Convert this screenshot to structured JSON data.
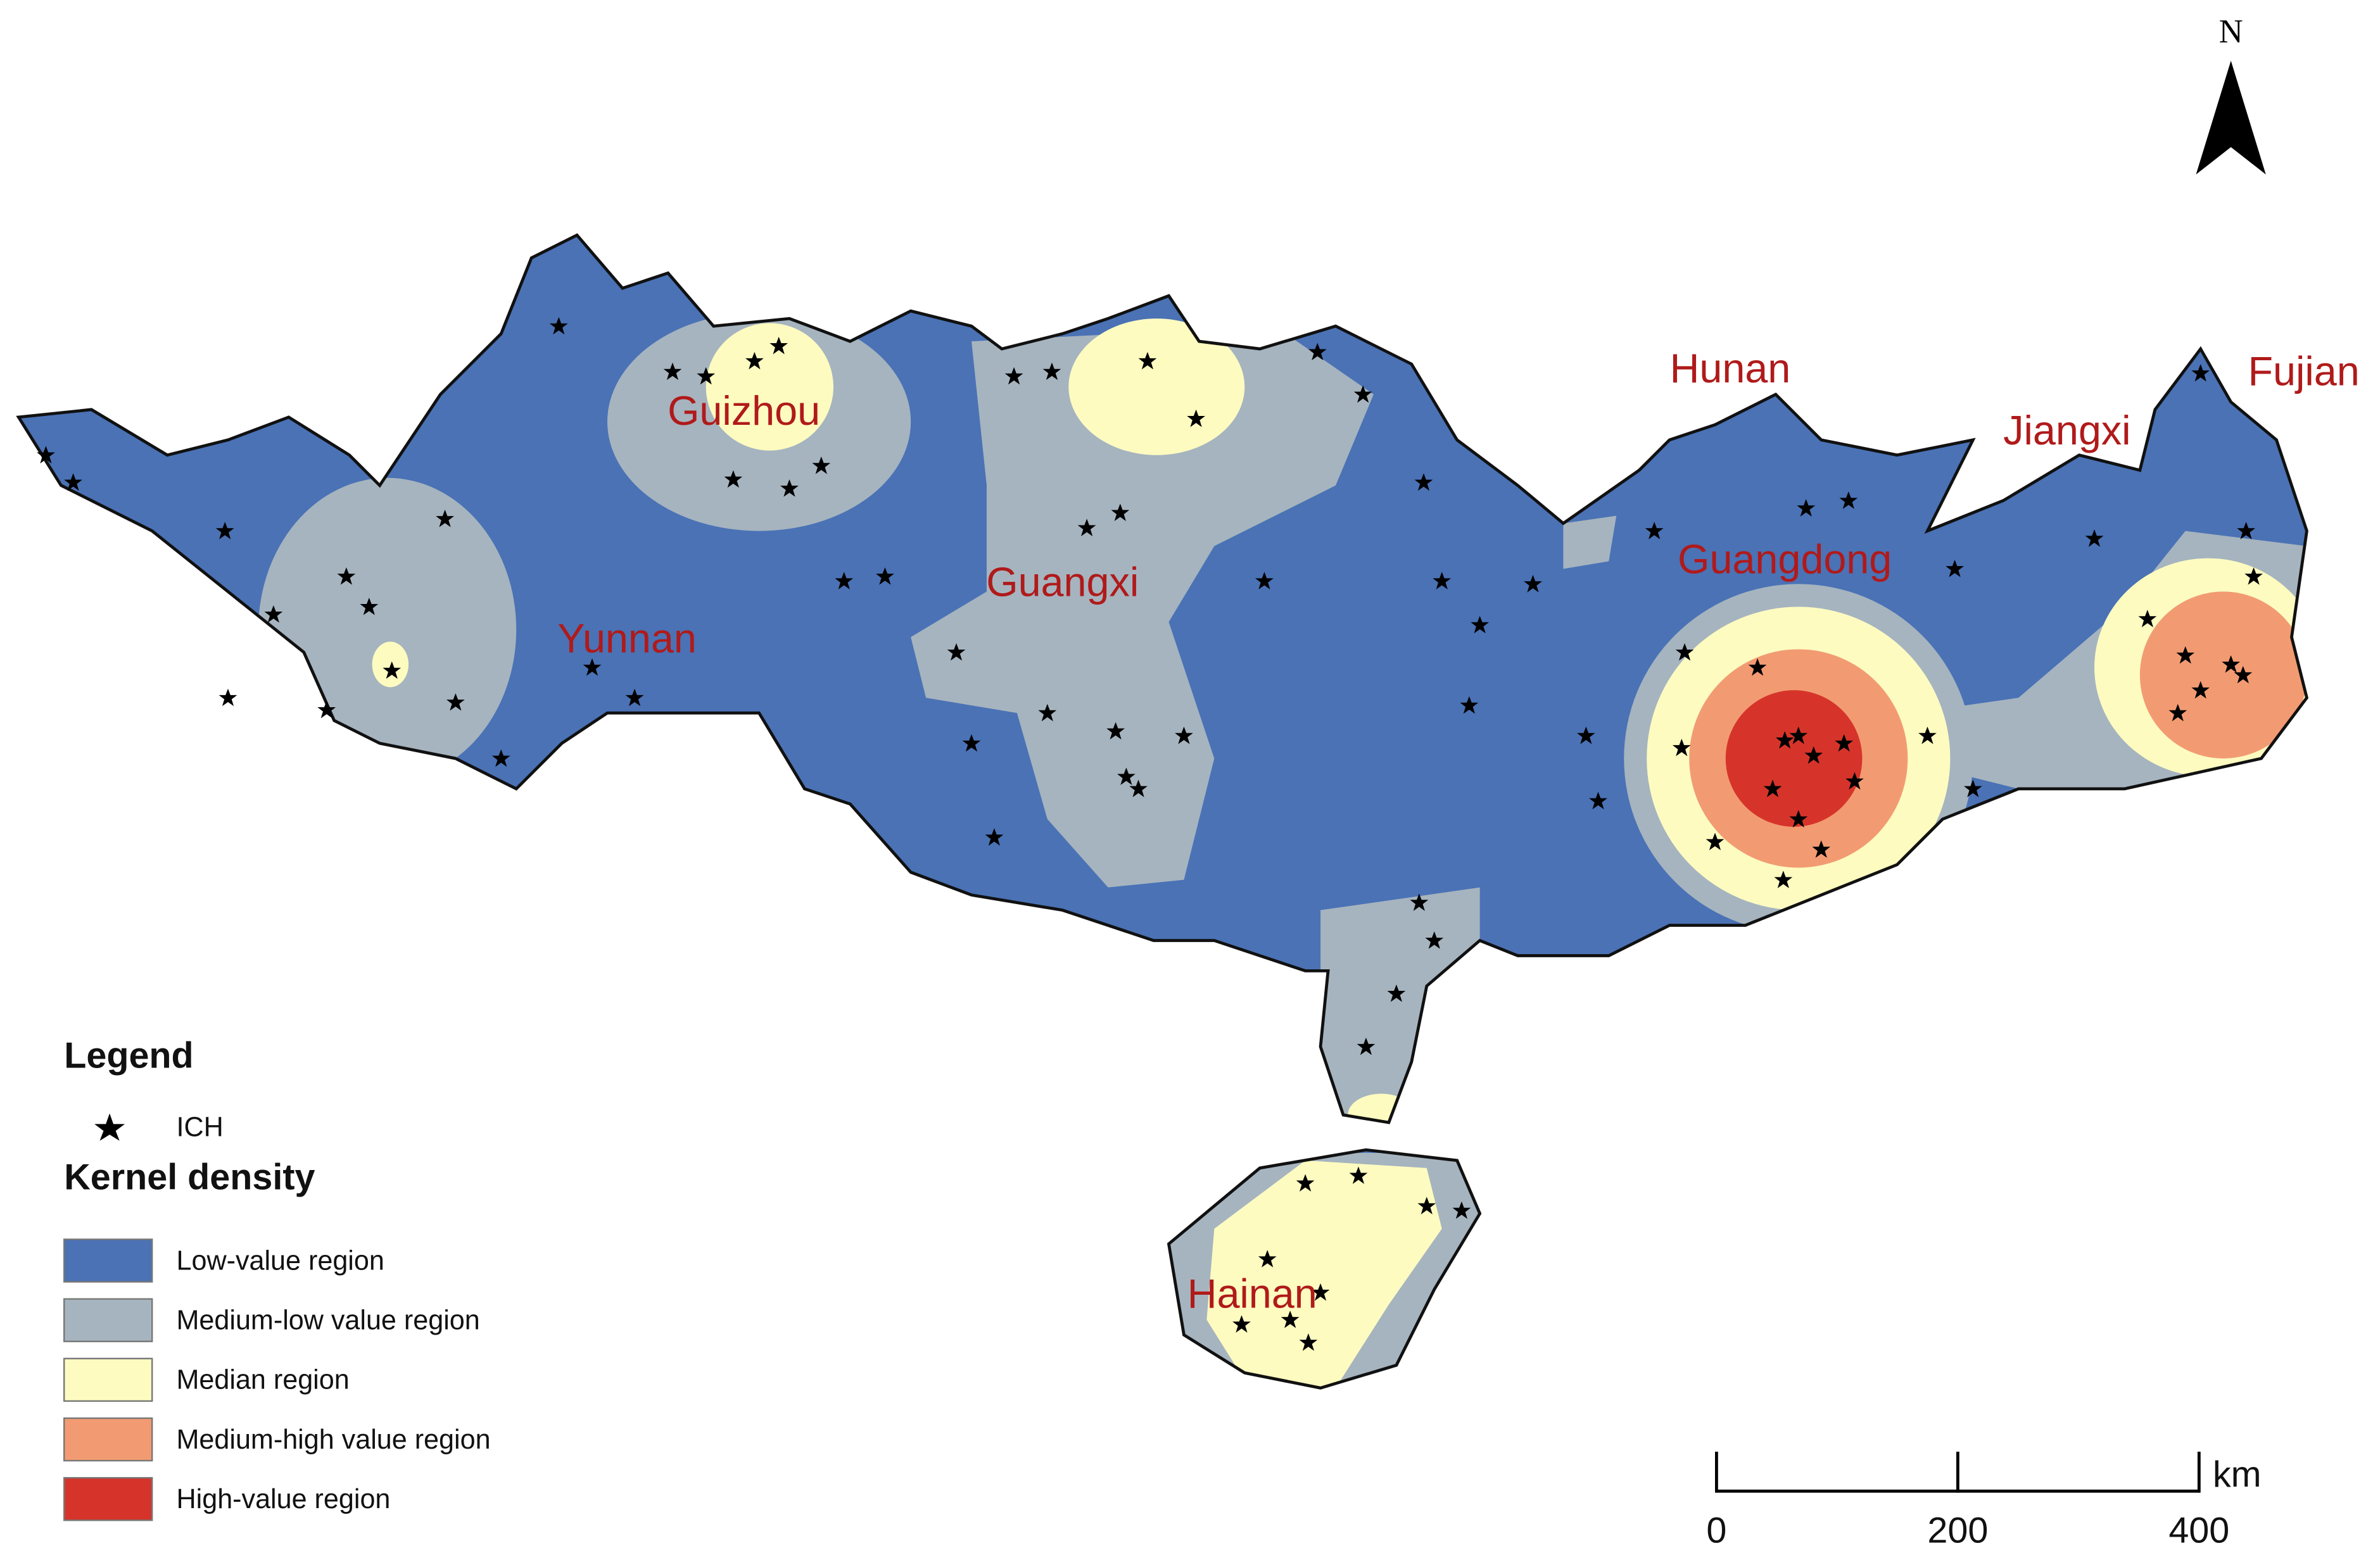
{
  "map": {
    "region_labels": [
      "Guizhou",
      "Guangxi",
      "Yunnan",
      "Hunan",
      "Jiangxi",
      "Fujian",
      "Guangdong",
      "Hainan"
    ],
    "north": "N",
    "legend": {
      "title": "Legend",
      "point_label": "ICH",
      "density_title": "Kernel density",
      "classes": [
        {
          "label": "Low-value region",
          "color": "#4a72b5"
        },
        {
          "label": "Medium-low value region",
          "color": "#a6b4bf"
        },
        {
          "label": "Median region",
          "color": "#fdfbc0"
        },
        {
          "label": "Medium-high value region",
          "color": "#f29b72"
        },
        {
          "label": "High-value region",
          "color": "#d6342a"
        }
      ]
    },
    "scale_bar": {
      "unit": "km",
      "ticks": [
        0,
        200,
        400
      ]
    }
  }
}
